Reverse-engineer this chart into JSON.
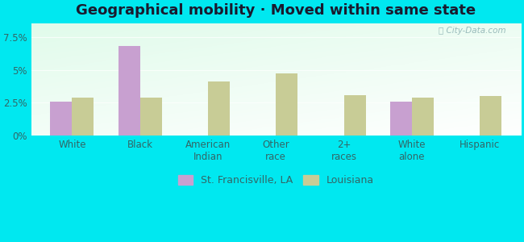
{
  "title": "Geographical mobility · Moved within same state",
  "categories": [
    "White",
    "Black",
    "American\nIndian",
    "Other\nrace",
    "2+\nraces",
    "White\nalone",
    "Hispanic"
  ],
  "city_values": [
    2.6,
    6.8,
    0.0,
    0.0,
    0.0,
    2.6,
    0.0
  ],
  "state_values": [
    2.9,
    2.9,
    4.1,
    4.7,
    3.1,
    2.9,
    3.0
  ],
  "city_color": "#c8a0d0",
  "state_color": "#c8cc96",
  "bg_outer": "#00e8f0",
  "ylabel_ticks": [
    "0%",
    "2.5%",
    "5%",
    "7.5%"
  ],
  "ytick_values": [
    0,
    2.5,
    5.0,
    7.5
  ],
  "ylim": [
    0,
    8.5
  ],
  "bar_width": 0.32,
  "legend_city": "St. Francisville, LA",
  "legend_state": "Louisiana",
  "title_fontsize": 13,
  "tick_fontsize": 8.5,
  "legend_fontsize": 9,
  "title_color": "#1a1a2e",
  "tick_color": "#336666",
  "watermark_color": "#99bbbb"
}
